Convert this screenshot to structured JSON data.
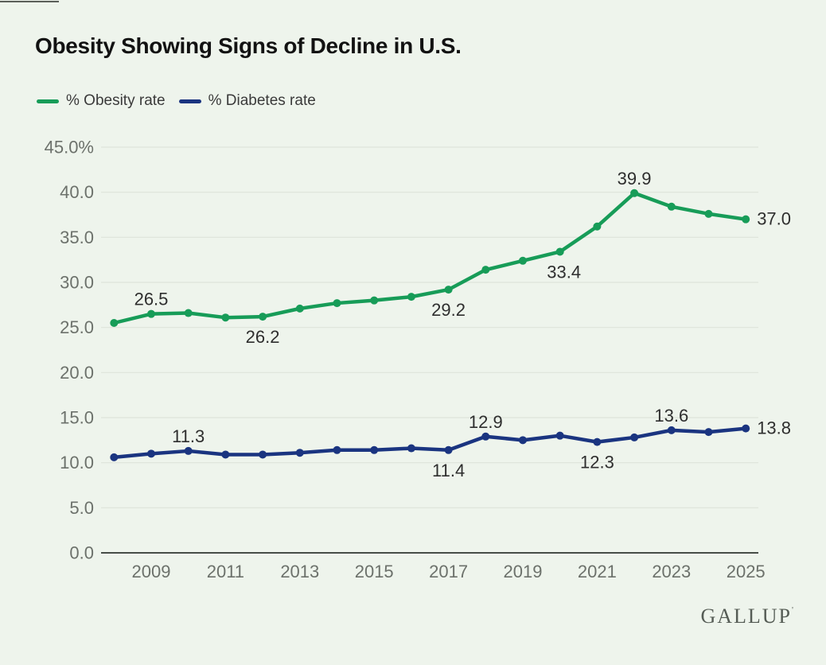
{
  "title": "Obesity Showing Signs of Decline in U.S.",
  "brand": {
    "name": "GALLUP",
    "mark": "'"
  },
  "legend": {
    "items": [
      {
        "label": "% Obesity rate",
        "color": "#179c58"
      },
      {
        "label": "% Diabetes rate",
        "color": "#1a3480"
      }
    ]
  },
  "colors": {
    "background": "#eef4ec",
    "obesity_green": "#179c58",
    "diabetes_navy": "#1a3480",
    "gridline": "#dee4da",
    "axis_line": "#474d47",
    "axis_text": "#6c716b",
    "point_label_text": "#2e2e2e",
    "title_text": "#121212"
  },
  "chart_data": {
    "type": "line",
    "x": [
      2008,
      2009,
      2010,
      2011,
      2012,
      2013,
      2014,
      2015,
      2016,
      2017,
      2018,
      2019,
      2020,
      2021,
      2022,
      2023,
      2024,
      2025
    ],
    "series": [
      {
        "id": "obesity-line",
        "name": "% Obesity rate",
        "color": "#179c58",
        "values": [
          25.5,
          26.5,
          26.6,
          26.1,
          26.2,
          27.1,
          27.7,
          28.0,
          28.4,
          29.2,
          31.4,
          32.4,
          33.4,
          36.2,
          39.9,
          38.4,
          37.6,
          37.0
        ]
      },
      {
        "id": "diabetes-line",
        "name": "% Diabetes rate",
        "color": "#1a3480",
        "values": [
          10.6,
          11.0,
          11.3,
          10.9,
          10.9,
          11.1,
          11.4,
          11.4,
          11.6,
          11.4,
          12.9,
          12.5,
          13.0,
          12.3,
          12.8,
          13.6,
          13.4,
          13.8
        ]
      }
    ],
    "ylim": [
      0,
      45
    ],
    "grid": true,
    "legend_position": "top-left",
    "yticks": [
      {
        "value": 45,
        "label": "45.0%"
      },
      {
        "value": 40,
        "label": "40.0"
      },
      {
        "value": 35,
        "label": "35.0"
      },
      {
        "value": 30,
        "label": "30.0"
      },
      {
        "value": 25,
        "label": "25.0"
      },
      {
        "value": 20,
        "label": "20.0"
      },
      {
        "value": 15,
        "label": "15.0"
      },
      {
        "value": 10,
        "label": "10.0"
      },
      {
        "value": 5,
        "label": "5.0"
      },
      {
        "value": 0,
        "label": "0.0"
      }
    ],
    "xticks": [
      {
        "value": 2009,
        "label": "2009"
      },
      {
        "value": 2011,
        "label": "2011"
      },
      {
        "value": 2013,
        "label": "2013"
      },
      {
        "value": 2015,
        "label": "2015"
      },
      {
        "value": 2017,
        "label": "2017"
      },
      {
        "value": 2019,
        "label": "2019"
      },
      {
        "value": 2021,
        "label": "2021"
      },
      {
        "value": 2023,
        "label": "2023"
      },
      {
        "value": 2025,
        "label": "2025"
      }
    ],
    "point_labels": [
      {
        "series": 0,
        "x": 2009,
        "label": "26.5",
        "placement": "above",
        "dx": 0
      },
      {
        "series": 0,
        "x": 2012,
        "label": "26.2",
        "placement": "below",
        "dx": 0
      },
      {
        "series": 0,
        "x": 2017,
        "label": "29.2",
        "placement": "below",
        "dx": 0
      },
      {
        "series": 0,
        "x": 2020,
        "label": "33.4",
        "placement": "below",
        "dx": 5
      },
      {
        "series": 0,
        "x": 2022,
        "label": "39.9",
        "placement": "above",
        "dx": 0
      },
      {
        "series": 0,
        "x": 2025,
        "label": "37.0",
        "placement": "right",
        "dx": 0
      },
      {
        "series": 1,
        "x": 2010,
        "label": "11.3",
        "placement": "above",
        "dx": 0
      },
      {
        "series": 1,
        "x": 2017,
        "label": "11.4",
        "placement": "below",
        "dx": 0
      },
      {
        "series": 1,
        "x": 2018,
        "label": "12.9",
        "placement": "above",
        "dx": 0
      },
      {
        "series": 1,
        "x": 2021,
        "label": "12.3",
        "placement": "below",
        "dx": 0
      },
      {
        "series": 1,
        "x": 2023,
        "label": "13.6",
        "placement": "above",
        "dx": 0
      },
      {
        "series": 1,
        "x": 2025,
        "label": "13.8",
        "placement": "right",
        "dx": 0
      }
    ]
  }
}
